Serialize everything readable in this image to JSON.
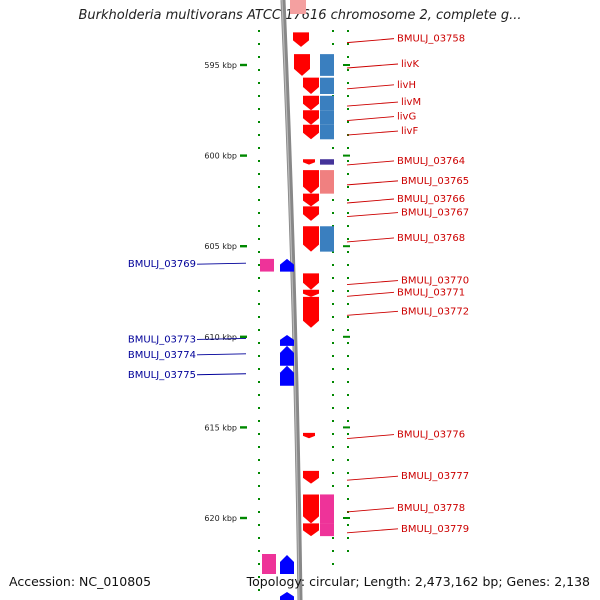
{
  "header": {
    "title": "Burkholderia multivorans ATCC 17616 chromosome 2, complete g..."
  },
  "footer": {
    "accession": "Accession: NC_010805",
    "topology": "Topology: circular; Length: 2,473,162 bp; Genes: 2,138"
  },
  "scale": {
    "ticks": [
      {
        "label": "595 kbp",
        "kbp": 595
      },
      {
        "label": "600 kbp",
        "kbp": 600
      },
      {
        "label": "605 kbp",
        "kbp": 605
      },
      {
        "label": "610 kbp",
        "kbp": 610
      },
      {
        "label": "615 kbp",
        "kbp": 615
      },
      {
        "label": "620 kbp",
        "kbp": 620
      }
    ]
  },
  "colors": {
    "forward_label": "#cc0000",
    "reverse_label": "#000099",
    "forward_gene": "#ff0000",
    "reverse_gene": "#0000ff",
    "cog_blue": "#3a7fbf",
    "cog_pink": "#ee3399",
    "cog_salmon": "#f08080",
    "cog_purple": "#443399",
    "backbone": "#888888",
    "tick_green": "#008800"
  },
  "forward_genes": [
    {
      "label": "BMULJ_03758",
      "start": 593.2,
      "end": 594.0
    },
    {
      "label": "livK",
      "start": 594.4,
      "end": 595.6
    },
    {
      "label": "livH",
      "start": 595.7,
      "end": 596.6
    },
    {
      "label": "livM",
      "start": 596.7,
      "end": 597.5
    },
    {
      "label": "livG",
      "start": 597.5,
      "end": 598.3
    },
    {
      "label": "livF",
      "start": 598.3,
      "end": 599.1
    },
    {
      "label": "BMULJ_03764",
      "start": 600.2,
      "end": 600.5
    },
    {
      "label": "BMULJ_03765",
      "start": 600.8,
      "end": 602.1
    },
    {
      "label": "BMULJ_03766",
      "start": 602.1,
      "end": 602.8
    },
    {
      "label": "BMULJ_03767",
      "start": 602.8,
      "end": 603.6
    },
    {
      "label": "BMULJ_03768",
      "start": 603.9,
      "end": 605.3
    },
    {
      "label": "BMULJ_03770",
      "start": 606.5,
      "end": 607.4
    },
    {
      "label": "BMULJ_03771",
      "start": 607.4,
      "end": 607.8
    },
    {
      "label": "BMULJ_03772",
      "start": 607.8,
      "end": 609.5
    },
    {
      "label": "BMULJ_03776",
      "start": 615.3,
      "end": 615.6
    },
    {
      "label": "BMULJ_03777",
      "start": 617.4,
      "end": 618.1
    },
    {
      "label": "BMULJ_03778",
      "start": 618.7,
      "end": 620.3
    },
    {
      "label": "BMULJ_03779",
      "start": 620.3,
      "end": 621.0
    }
  ],
  "reverse_genes": [
    {
      "label": "BMULJ_03769",
      "start": 605.7,
      "end": 606.4
    },
    {
      "label": "BMULJ_03773",
      "start": 609.9,
      "end": 610.5
    },
    {
      "label": "BMULJ_03774",
      "start": 610.5,
      "end": 611.6
    },
    {
      "label": "BMULJ_03775",
      "start": 611.6,
      "end": 612.7
    }
  ]
}
